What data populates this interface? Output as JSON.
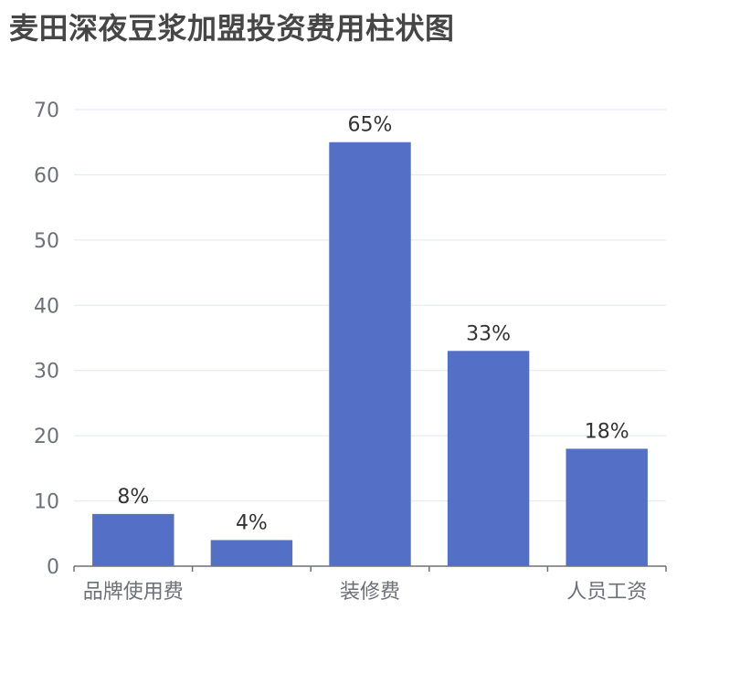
{
  "title": "麦田深夜豆浆加盟投资费用柱状图",
  "chart_data": {
    "type": "bar",
    "title": "麦田深夜豆浆加盟投资费用柱状图",
    "categories": [
      "品牌使用费",
      "",
      "装修费",
      "",
      "人员工资"
    ],
    "values": [
      8,
      4,
      65,
      33,
      18
    ],
    "data_labels": [
      "8%",
      "4%",
      "65%",
      "33%",
      "18%"
    ],
    "ylim": [
      0,
      70
    ],
    "y_ticks": [
      0,
      10,
      20,
      30,
      40,
      50,
      60,
      70
    ],
    "grid": true,
    "legend": "none",
    "colors": {
      "bar": "#5470c6",
      "grid": "#e0e6f1",
      "axis": "#6e7079"
    }
  }
}
